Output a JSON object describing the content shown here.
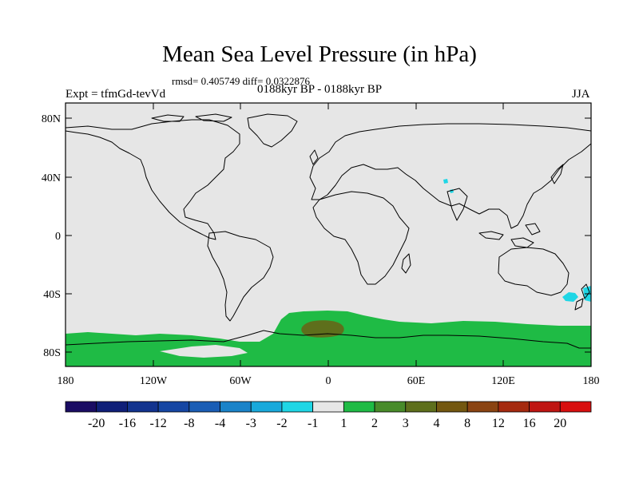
{
  "title": "Mean Sea Level Pressure (in hPa)",
  "stats": "rmsd= 0.405749 diff= 0.0322876",
  "expt": "Expt = tfmGd-tevVd",
  "period": "0188kyr BP - 0188kyr BP",
  "season": "JJA",
  "map": {
    "lat_ticks": [
      "80N",
      "40N",
      "0",
      "40S",
      "80S"
    ],
    "lon_ticks": [
      "180",
      "120W",
      "60W",
      "0",
      "60E",
      "120E",
      "180"
    ],
    "lat_values": [
      80,
      40,
      0,
      -40,
      -80
    ],
    "lon_values": [
      -180,
      -120,
      -60,
      0,
      60,
      120,
      180
    ],
    "lat_range": [
      -90,
      90
    ],
    "lon_range": [
      -180,
      180
    ],
    "background_color": "#e6e6e6",
    "anomaly_regions": [
      {
        "name": "southern-ocean-band",
        "value_class": "1 to 2",
        "color": "#1fbb45"
      },
      {
        "name": "south-atlantic-core",
        "value_class": "3 to 4",
        "color": "#5e6f1c"
      },
      {
        "name": "tasman-sea-patch",
        "value_class": "-2 to -1",
        "color": "#1fd6e5"
      },
      {
        "name": "arabian-sea-patch",
        "value_class": "-2 to -1",
        "color": "#1fd6e5"
      }
    ]
  },
  "colorbar": {
    "labels": [
      "-20",
      "-16",
      "-12",
      "-8",
      "-4",
      "-3",
      "-2",
      "-1",
      "1",
      "2",
      "3",
      "4",
      "8",
      "12",
      "16",
      "20"
    ],
    "colors": [
      "#1a0c63",
      "#0f1f78",
      "#12338e",
      "#1646a3",
      "#1a5db5",
      "#1a83c9",
      "#19a9db",
      "#1fd6e5",
      "#e6e6e6",
      "#1fbb45",
      "#488b2a",
      "#5e6f1c",
      "#735710",
      "#8a4412",
      "#a52a0f",
      "#bf1512",
      "#d80f0f"
    ]
  }
}
